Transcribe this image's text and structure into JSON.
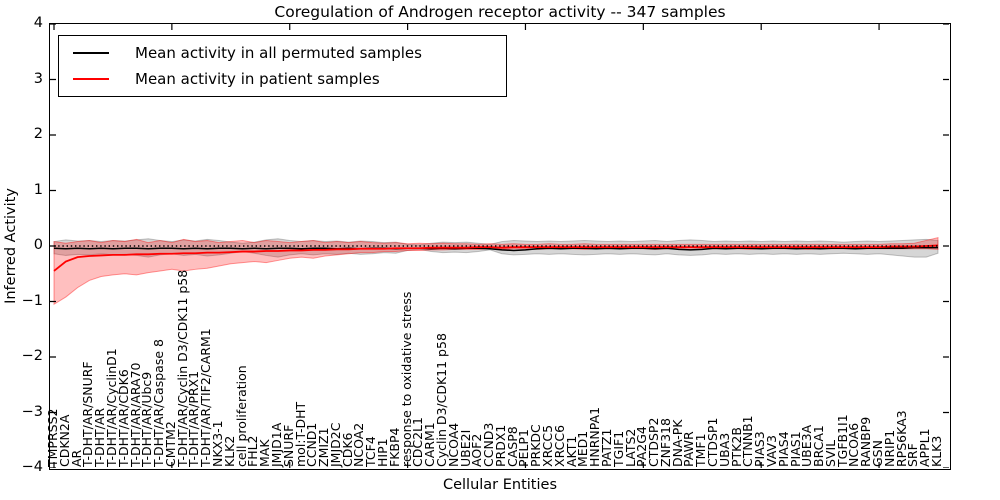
{
  "figure": {
    "title": "Coregulation of Androgen receptor activity -- 347 samples",
    "xlabel": "Cellular Entities",
    "ylabel": "Inferred Activity",
    "background_color": "#ffffff",
    "axis_color": "#000000"
  },
  "legend": {
    "position": "upper left",
    "items": [
      {
        "label": "Mean activity in all permuted samples",
        "color": "#000000"
      },
      {
        "label": "Mean activity in patient samples",
        "color": "#ff0000"
      }
    ]
  },
  "chart_data": {
    "type": "line",
    "title": "Coregulation of Androgen receptor activity -- 347 samples",
    "xlabel": "Cellular Entities",
    "ylabel": "Inferred Activity",
    "ylim": [
      -4,
      4
    ],
    "ytick_values": [
      4,
      3,
      2,
      1,
      0,
      -1,
      -2,
      -3,
      -4
    ],
    "ytick_labels": [
      "4",
      "3",
      "2",
      "1",
      "0",
      "−1",
      "−2",
      "−3",
      "−4"
    ],
    "x_major_tick_every": 10,
    "grid": false,
    "zero_line": {
      "y": 0,
      "style": "dotted",
      "color": "#000000"
    },
    "categories": [
      "TMPRSS2",
      "CDKN2A",
      "AR",
      "T-DHT/AR/SNURF",
      "T-DHT/AR",
      "T-DHT/AR/CyclinD1",
      "T-DHT/AR/CDK6",
      "T-DHT/AR/ARA70",
      "T-DHT/AR/Ubc9",
      "T-DHT/AR/Caspase 8",
      "CMTM2",
      "T-DHT/AR/Cyclin D3/CDK11 p58",
      "T-DHT/AR/PRX1",
      "T-DHT/AR/TIF2/CARM1",
      "NKX3-1",
      "KLK2",
      "cell proliferation",
      "FHL2",
      "MAK",
      "JMJD1A",
      "SNURF",
      "mol:T-DHT",
      "CCND1",
      "ZMIZ1",
      "JMJD2C",
      "CDK6",
      "NCOA2",
      "TCF4",
      "HIP1",
      "FKBP4",
      "response to oxidative stress",
      "CDC2L1",
      "CARM1",
      "Cyclin D3/CDK11 p58",
      "NCOA4",
      "UBE2I",
      "AOF2",
      "CCND3",
      "PRDX1",
      "CASP8",
      "PELP1",
      "PRKDC",
      "XRCC5",
      "XRCC6",
      "AKT1",
      "MED1",
      "HNRNPA1",
      "PATZ1",
      "TGIF1",
      "LATS2",
      "PA2G4",
      "CTDSP2",
      "ZNF318",
      "DNA-PK",
      "PAWR",
      "TMF1",
      "CTDSP1",
      "UBA3",
      "PTK2B",
      "CTNNB1",
      "PIAS3",
      "VAV3",
      "PIAS4",
      "PIAS1",
      "UBE3A",
      "BRCA1",
      "SVIL",
      "TGFB1I1",
      "NCOA6",
      "RANBP9",
      "GSN",
      "NRIP1",
      "RPS6KA3",
      "SRF",
      "APPL1",
      "KLK3"
    ],
    "series": [
      {
        "name": "Mean activity in all permuted samples",
        "color": "#000000",
        "line_width": 1.5,
        "band_fill": "rgba(0,0,0,0.16)",
        "band_edge": "rgba(0,0,0,0.22)",
        "values": [
          -0.04,
          -0.05,
          -0.04,
          -0.05,
          -0.04,
          -0.05,
          -0.04,
          -0.04,
          -0.05,
          -0.04,
          -0.04,
          -0.05,
          -0.04,
          -0.05,
          -0.04,
          -0.04,
          -0.05,
          -0.04,
          -0.05,
          -0.04,
          -0.04,
          -0.05,
          -0.04,
          -0.04,
          -0.05,
          -0.04,
          -0.05,
          -0.04,
          -0.04,
          -0.05,
          -0.04,
          -0.04,
          -0.05,
          -0.04,
          -0.05,
          -0.04,
          -0.04,
          -0.05,
          -0.07,
          -0.08,
          -0.07,
          -0.05,
          -0.04,
          -0.05,
          -0.04,
          -0.04,
          -0.05,
          -0.04,
          -0.05,
          -0.04,
          -0.04,
          -0.05,
          -0.04,
          -0.06,
          -0.07,
          -0.06,
          -0.04,
          -0.05,
          -0.04,
          -0.04,
          -0.05,
          -0.04,
          -0.04,
          -0.05,
          -0.04,
          -0.05,
          -0.04,
          -0.04,
          -0.05,
          -0.04,
          -0.04,
          -0.04,
          -0.04,
          -0.03,
          -0.03,
          -0.03
        ],
        "band_low": [
          -0.14,
          -0.17,
          -0.15,
          -0.16,
          -0.14,
          -0.16,
          -0.15,
          -0.17,
          -0.2,
          -0.16,
          -0.14,
          -0.17,
          -0.15,
          -0.18,
          -0.16,
          -0.13,
          -0.1,
          -0.13,
          -0.17,
          -0.2,
          -0.16,
          -0.14,
          -0.16,
          -0.14,
          -0.15,
          -0.13,
          -0.15,
          -0.14,
          -0.12,
          -0.13,
          -0.08,
          -0.06,
          -0.1,
          -0.12,
          -0.11,
          -0.12,
          -0.1,
          -0.07,
          -0.14,
          -0.16,
          -0.15,
          -0.14,
          -0.15,
          -0.14,
          -0.15,
          -0.16,
          -0.15,
          -0.14,
          -0.15,
          -0.14,
          -0.15,
          -0.16,
          -0.14,
          -0.16,
          -0.17,
          -0.16,
          -0.14,
          -0.15,
          -0.14,
          -0.15,
          -0.14,
          -0.15,
          -0.14,
          -0.15,
          -0.14,
          -0.15,
          -0.14,
          -0.13,
          -0.14,
          -0.15,
          -0.14,
          -0.16,
          -0.18,
          -0.2,
          -0.2,
          -0.13
        ],
        "band_high": [
          0.08,
          0.11,
          0.09,
          0.1,
          0.08,
          0.1,
          0.09,
          0.11,
          0.13,
          0.1,
          0.08,
          0.11,
          0.09,
          0.12,
          0.1,
          0.07,
          0.05,
          0.07,
          0.11,
          0.13,
          0.1,
          0.08,
          0.1,
          0.08,
          0.09,
          0.07,
          0.09,
          0.08,
          0.06,
          0.07,
          0.03,
          0.02,
          0.05,
          0.07,
          0.06,
          0.07,
          0.05,
          0.03,
          0.08,
          0.1,
          0.09,
          0.08,
          0.09,
          0.08,
          0.09,
          0.1,
          0.09,
          0.08,
          0.09,
          0.08,
          0.09,
          0.1,
          0.08,
          0.1,
          0.11,
          0.1,
          0.08,
          0.09,
          0.08,
          0.09,
          0.08,
          0.09,
          0.08,
          0.09,
          0.08,
          0.09,
          0.08,
          0.07,
          0.08,
          0.09,
          0.08,
          0.09,
          0.1,
          0.11,
          0.12,
          0.1
        ]
      },
      {
        "name": "Mean activity in patient samples",
        "color": "#ff0000",
        "line_width": 1.8,
        "band_fill": "rgba(255,0,0,0.25)",
        "band_edge": "rgba(255,0,0,0.4)",
        "values": [
          -0.45,
          -0.28,
          -0.2,
          -0.18,
          -0.17,
          -0.16,
          -0.16,
          -0.15,
          -0.15,
          -0.14,
          -0.14,
          -0.13,
          -0.13,
          -0.12,
          -0.12,
          -0.11,
          -0.1,
          -0.1,
          -0.09,
          -0.09,
          -0.08,
          -0.08,
          -0.07,
          -0.07,
          -0.06,
          -0.06,
          -0.05,
          -0.05,
          -0.05,
          -0.04,
          -0.04,
          -0.04,
          -0.03,
          -0.03,
          -0.03,
          -0.03,
          -0.02,
          -0.02,
          -0.03,
          -0.02,
          -0.02,
          -0.02,
          -0.02,
          -0.02,
          -0.02,
          -0.02,
          -0.02,
          -0.02,
          -0.02,
          -0.02,
          -0.02,
          -0.02,
          -0.02,
          -0.02,
          -0.02,
          -0.02,
          -0.02,
          -0.02,
          -0.02,
          -0.02,
          -0.02,
          -0.02,
          -0.02,
          -0.02,
          -0.02,
          -0.02,
          -0.02,
          -0.02,
          -0.02,
          -0.02,
          -0.02,
          -0.01,
          -0.01,
          -0.01,
          0.0,
          0.01
        ],
        "band_low": [
          -1.05,
          -0.92,
          -0.75,
          -0.62,
          -0.55,
          -0.52,
          -0.5,
          -0.52,
          -0.48,
          -0.45,
          -0.42,
          -0.45,
          -0.42,
          -0.4,
          -0.36,
          -0.32,
          -0.3,
          -0.28,
          -0.3,
          -0.26,
          -0.22,
          -0.2,
          -0.22,
          -0.18,
          -0.16,
          -0.14,
          -0.12,
          -0.12,
          -0.1,
          -0.1,
          -0.08,
          -0.08,
          -0.07,
          -0.07,
          -0.06,
          -0.06,
          -0.06,
          -0.05,
          -0.06,
          -0.05,
          -0.05,
          -0.06,
          -0.05,
          -0.05,
          -0.05,
          -0.06,
          -0.05,
          -0.05,
          -0.05,
          -0.05,
          -0.05,
          -0.06,
          -0.05,
          -0.05,
          -0.06,
          -0.05,
          -0.05,
          -0.05,
          -0.05,
          -0.06,
          -0.05,
          -0.05,
          -0.05,
          -0.05,
          -0.06,
          -0.05,
          -0.05,
          -0.05,
          -0.05,
          -0.05,
          -0.05,
          -0.05,
          -0.05,
          -0.05,
          -0.05,
          -0.06
        ],
        "band_high": [
          0.08,
          0.05,
          0.08,
          0.1,
          0.06,
          0.1,
          0.08,
          0.12,
          0.06,
          0.1,
          0.06,
          0.12,
          0.08,
          0.1,
          0.06,
          0.08,
          0.1,
          0.06,
          0.1,
          0.08,
          0.06,
          0.08,
          0.1,
          0.06,
          0.08,
          0.06,
          0.08,
          0.06,
          0.05,
          0.06,
          0.04,
          0.05,
          0.04,
          0.05,
          0.04,
          0.04,
          0.03,
          0.04,
          0.03,
          0.04,
          0.03,
          0.03,
          0.04,
          0.03,
          0.03,
          0.04,
          0.03,
          0.03,
          0.03,
          0.03,
          0.03,
          0.03,
          0.03,
          0.03,
          0.03,
          0.03,
          0.03,
          0.03,
          0.03,
          0.03,
          0.03,
          0.03,
          0.03,
          0.03,
          0.03,
          0.03,
          0.03,
          0.03,
          0.03,
          0.03,
          0.03,
          0.04,
          0.04,
          0.05,
          0.1,
          0.15
        ]
      }
    ]
  }
}
